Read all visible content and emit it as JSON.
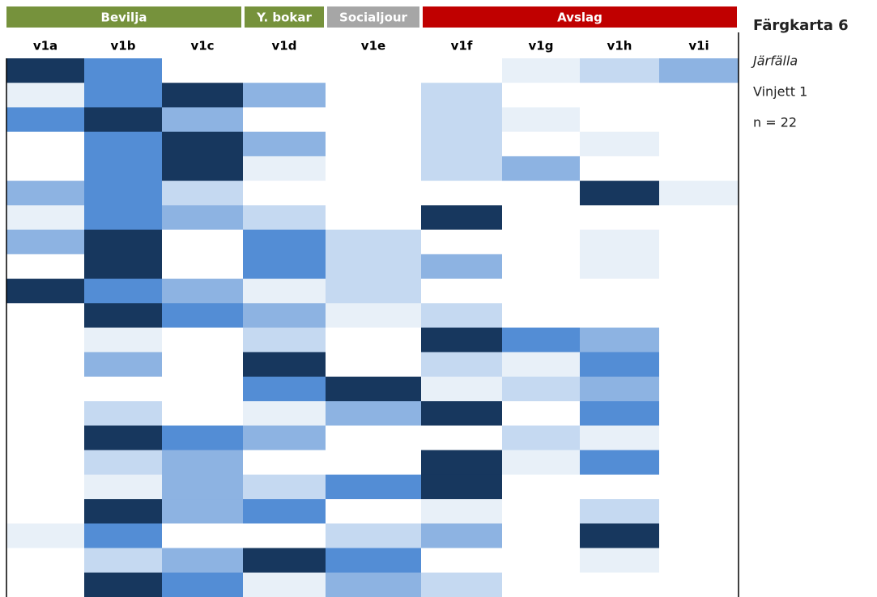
{
  "chart_data": {
    "type": "heatmap",
    "title": "Färgkarta 6",
    "subtitle": "Järfälla",
    "annotations": [
      "Vinjett 1",
      "n = 22"
    ],
    "groups": [
      {
        "name": "Bevilja",
        "color": "#76923c",
        "span": 3
      },
      {
        "name": "Y. bokar",
        "color": "#76923c",
        "span": 1
      },
      {
        "name": "Socialjour",
        "color": "#a6a6a6",
        "span": 1
      },
      {
        "name": "Avslag",
        "color": "#c00000",
        "span": 4
      }
    ],
    "columns": [
      "v1a",
      "v1b",
      "v1c",
      "v1d",
      "v1e",
      "v1f",
      "v1g",
      "v1h",
      "v1i"
    ],
    "colors": [
      "#ffffff",
      "#e8f0f8",
      "#c5d9f1",
      "#8db3e2",
      "#538dd5",
      "#17375e"
    ],
    "values": [
      [
        5,
        4,
        0,
        0,
        0,
        0,
        1,
        2,
        3
      ],
      [
        1,
        4,
        5,
        3,
        0,
        2,
        0,
        0,
        0
      ],
      [
        4,
        5,
        3,
        0,
        0,
        2,
        1,
        0,
        0
      ],
      [
        0,
        4,
        5,
        3,
        0,
        2,
        0,
        1,
        0
      ],
      [
        0,
        4,
        5,
        1,
        0,
        2,
        3,
        0,
        0
      ],
      [
        3,
        4,
        2,
        0,
        0,
        0,
        0,
        5,
        1
      ],
      [
        1,
        4,
        3,
        2,
        0,
        5,
        0,
        0,
        0
      ],
      [
        3,
        5,
        0,
        4,
        2,
        0,
        0,
        1,
        0
      ],
      [
        0,
        5,
        0,
        4,
        2,
        3,
        0,
        1,
        0
      ],
      [
        5,
        4,
        3,
        1,
        2,
        0,
        0,
        0,
        0
      ],
      [
        0,
        5,
        4,
        3,
        1,
        2,
        0,
        0,
        0
      ],
      [
        0,
        1,
        0,
        2,
        0,
        5,
        4,
        3,
        0
      ],
      [
        0,
        3,
        0,
        5,
        0,
        2,
        1,
        4,
        0
      ],
      [
        0,
        0,
        0,
        4,
        5,
        1,
        2,
        3,
        0
      ],
      [
        0,
        2,
        0,
        1,
        3,
        5,
        0,
        4,
        0
      ],
      [
        0,
        5,
        4,
        3,
        0,
        0,
        2,
        1,
        0
      ],
      [
        0,
        2,
        3,
        0,
        0,
        5,
        1,
        4,
        0
      ],
      [
        0,
        1,
        3,
        2,
        4,
        5,
        0,
        0,
        0
      ],
      [
        0,
        5,
        3,
        4,
        0,
        1,
        0,
        2,
        0
      ],
      [
        1,
        4,
        0,
        0,
        2,
        3,
        0,
        5,
        0
      ],
      [
        0,
        2,
        3,
        5,
        4,
        0,
        0,
        1,
        0
      ],
      [
        0,
        5,
        4,
        1,
        3,
        2,
        0,
        0,
        0
      ]
    ]
  }
}
